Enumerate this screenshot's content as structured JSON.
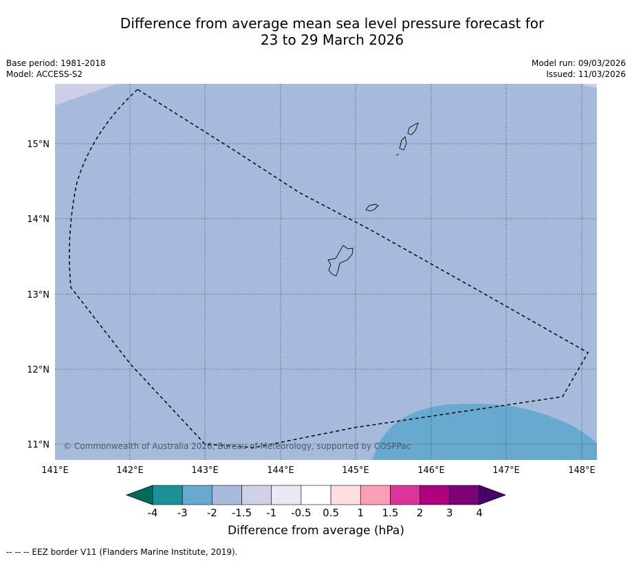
{
  "title": {
    "line1": "Difference from average mean sea level pressure forecast for",
    "line2": "23 to 29 March 2026"
  },
  "meta": {
    "base_period": "Base period: 1981-2018",
    "model": "Model: ACCESS-S2",
    "model_run": "Model run: 09/03/2026",
    "issued": "Issued: 11/03/2026"
  },
  "map": {
    "lat_labels": [
      "15°N",
      "14°N",
      "13°N",
      "12°N",
      "11°N"
    ],
    "lon_labels": [
      "141°E",
      "142°E",
      "143°E",
      "144°E",
      "145°E",
      "146°E",
      "147°E",
      "148°E"
    ],
    "copyright": "© Commonwealth of Australia 2026, Bureau of Meteorology, supported by COSPPac",
    "fill_colors": {
      "-2 to -1.5": "#a6bbdb",
      "-1.5 to -1": "#cccfe6",
      "-3 to -2": "#67a9cf"
    }
  },
  "colorbar": {
    "tick_labels": [
      "-4",
      "-3",
      "-2",
      "-1.5",
      "-1",
      "-0.5",
      "0.5",
      "1",
      "1.5",
      "2",
      "3",
      "4"
    ],
    "colors": [
      "#016c59",
      "#1c9099",
      "#67a9cf",
      "#a6bbdb",
      "#d0d1e6",
      "#ece7f2",
      "#ffffff",
      "#fde0dd",
      "#fa9fb5",
      "#dd3497",
      "#ae017e",
      "#7a0177",
      "#49006a"
    ],
    "label": "Difference from average (hPa)"
  },
  "footnote": "--  --  -- EEZ border V11 (Flanders Marine Institute, 2019)."
}
